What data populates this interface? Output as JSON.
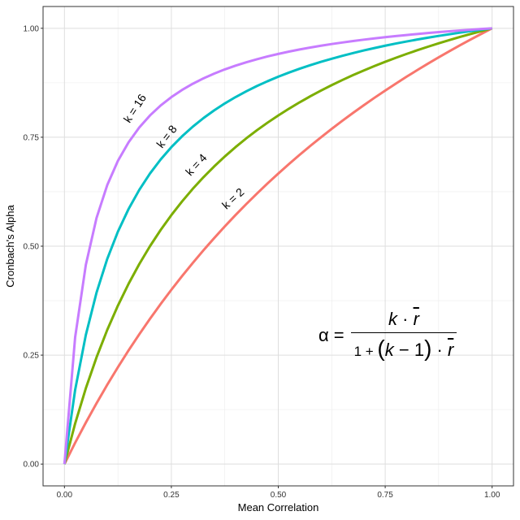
{
  "chart_data": {
    "type": "line",
    "title": "",
    "xlabel": "Mean Correlation",
    "ylabel": "Cronbach's Alpha",
    "xlim": [
      -0.05,
      1.05
    ],
    "ylim": [
      -0.05,
      1.05
    ],
    "grid": true,
    "legend": "none",
    "xticks": [
      "0.00",
      "0.25",
      "0.50",
      "0.75",
      "1.00"
    ],
    "yticks": [
      "0.00",
      "0.25",
      "0.50",
      "0.75",
      "1.00"
    ],
    "x": [
      0,
      0.025,
      0.05,
      0.075,
      0.1,
      0.125,
      0.15,
      0.175,
      0.2,
      0.225,
      0.25,
      0.275,
      0.3,
      0.325,
      0.35,
      0.375,
      0.4,
      0.425,
      0.45,
      0.475,
      0.5,
      0.525,
      0.55,
      0.575,
      0.6,
      0.625,
      0.65,
      0.675,
      0.7,
      0.725,
      0.75,
      0.775,
      0.8,
      0.825,
      0.85,
      0.875,
      0.9,
      0.925,
      0.95,
      0.975,
      1
    ],
    "series": [
      {
        "name": "k = 2",
        "color": "#F8766D",
        "values": [
          0,
          0.0488,
          0.0952,
          0.1395,
          0.1818,
          0.2222,
          0.2609,
          0.2979,
          0.3333,
          0.3673,
          0.4,
          0.4314,
          0.4615,
          0.4906,
          0.5185,
          0.5455,
          0.5714,
          0.5965,
          0.6207,
          0.6441,
          0.6667,
          0.6885,
          0.7097,
          0.7302,
          0.75,
          0.7692,
          0.7879,
          0.806,
          0.8235,
          0.8406,
          0.8571,
          0.8732,
          0.8889,
          0.9041,
          0.9189,
          0.9333,
          0.9474,
          0.961,
          0.9744,
          0.9873,
          1
        ]
      },
      {
        "name": "k = 4",
        "color": "#7CAE00",
        "values": [
          0,
          0.093,
          0.1739,
          0.2449,
          0.3077,
          0.3636,
          0.4138,
          0.459,
          0.5,
          0.5373,
          0.5714,
          0.6027,
          0.6316,
          0.6582,
          0.6829,
          0.7059,
          0.7273,
          0.7473,
          0.766,
          0.7835,
          0.8,
          0.8155,
          0.8302,
          0.844,
          0.8571,
          0.8696,
          0.8814,
          0.8926,
          0.9032,
          0.9134,
          0.9231,
          0.9323,
          0.9412,
          0.9496,
          0.9577,
          0.9655,
          0.973,
          0.9801,
          0.987,
          0.9936,
          1
        ]
      },
      {
        "name": "k = 8",
        "color": "#00BFC4",
        "values": [
          0,
          0.1702,
          0.2963,
          0.3934,
          0.4706,
          0.5333,
          0.5854,
          0.6292,
          0.6667,
          0.699,
          0.7273,
          0.7521,
          0.7742,
          0.7939,
          0.8116,
          0.8276,
          0.8421,
          0.8553,
          0.8675,
          0.8786,
          0.8889,
          0.8984,
          0.9072,
          0.9154,
          0.9231,
          0.9302,
          0.9369,
          0.9432,
          0.9492,
          0.9547,
          0.96,
          0.965,
          0.9697,
          0.9742,
          0.9784,
          0.9825,
          0.9863,
          0.99,
          0.9935,
          0.9968,
          1
        ]
      },
      {
        "name": "k = 16",
        "color": "#C77CFF",
        "values": [
          0,
          0.2909,
          0.4571,
          0.5647,
          0.64,
          0.6957,
          0.7385,
          0.7724,
          0.8,
          0.8229,
          0.8421,
          0.8585,
          0.8727,
          0.8851,
          0.896,
          0.9057,
          0.9143,
          0.922,
          0.929,
          0.9354,
          0.9412,
          0.9465,
          0.9514,
          0.9558,
          0.96,
          0.9639,
          0.9674,
          0.9708,
          0.9739,
          0.9768,
          0.9796,
          0.9822,
          0.9846,
          0.9869,
          0.9891,
          0.9912,
          0.9931,
          0.995,
          0.9967,
          0.9984,
          1
        ]
      }
    ],
    "annotations": {
      "alpha": "α",
      "equals": "=",
      "numerator_k": "k",
      "dot": "·",
      "rbar": "r",
      "den_one": "1 + ",
      "den_open": "(",
      "den_km1": "k",
      "den_minus": " − 1",
      "den_close": ")"
    }
  }
}
